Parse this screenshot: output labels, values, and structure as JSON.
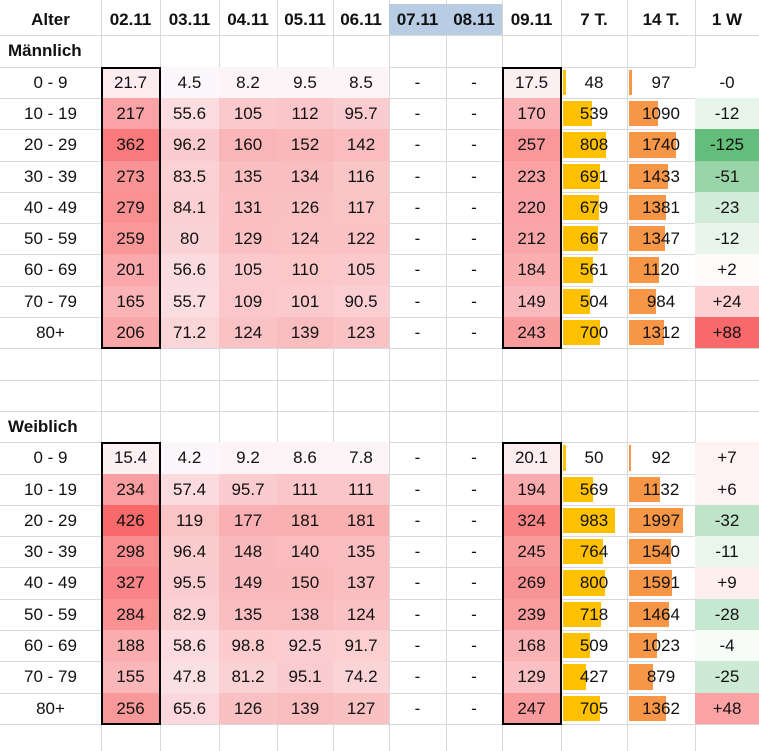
{
  "header": {
    "age_label": "Alter",
    "columns": [
      "02.11",
      "03.11",
      "04.11",
      "05.11",
      "06.11",
      "07.11",
      "08.11",
      "09.11",
      "7 T.",
      "14 T.",
      "1 W"
    ],
    "weekend_columns": [
      "07.11",
      "08.11"
    ],
    "weekend_header_color": "#b8cce4"
  },
  "groups": [
    {
      "title": "Männlich",
      "rows": [
        {
          "age": "0 - 9",
          "days": [
            "21.7",
            "4.5",
            "8.2",
            "9.5",
            "8.5",
            "-",
            "-",
            "17.5"
          ],
          "t7": "48",
          "t14": "97",
          "w1": "-0"
        },
        {
          "age": "10 - 19",
          "days": [
            "217",
            "55.6",
            "105",
            "112",
            "95.7",
            "-",
            "-",
            "170"
          ],
          "t7": "539",
          "t14": "1090",
          "w1": "-12"
        },
        {
          "age": "20 - 29",
          "days": [
            "362",
            "96.2",
            "160",
            "152",
            "142",
            "-",
            "-",
            "257"
          ],
          "t7": "808",
          "t14": "1740",
          "w1": "-125"
        },
        {
          "age": "30 - 39",
          "days": [
            "273",
            "83.5",
            "135",
            "134",
            "116",
            "-",
            "-",
            "223"
          ],
          "t7": "691",
          "t14": "1433",
          "w1": "-51"
        },
        {
          "age": "40 - 49",
          "days": [
            "279",
            "84.1",
            "131",
            "126",
            "117",
            "-",
            "-",
            "220"
          ],
          "t7": "679",
          "t14": "1381",
          "w1": "-23"
        },
        {
          "age": "50 - 59",
          "days": [
            "259",
            "80",
            "129",
            "124",
            "122",
            "-",
            "-",
            "212"
          ],
          "t7": "667",
          "t14": "1347",
          "w1": "-12"
        },
        {
          "age": "60 - 69",
          "days": [
            "201",
            "56.6",
            "105",
            "110",
            "105",
            "-",
            "-",
            "184"
          ],
          "t7": "561",
          "t14": "1120",
          "w1": "+2"
        },
        {
          "age": "70 - 79",
          "days": [
            "165",
            "55.7",
            "109",
            "101",
            "90.5",
            "-",
            "-",
            "149"
          ],
          "t7": "504",
          "t14": "984",
          "w1": "+24"
        },
        {
          "age": "80+",
          "days": [
            "206",
            "71.2",
            "124",
            "139",
            "123",
            "-",
            "-",
            "243"
          ],
          "t7": "700",
          "t14": "1312",
          "w1": "+88"
        }
      ]
    },
    {
      "title": "Weiblich",
      "rows": [
        {
          "age": "0 - 9",
          "days": [
            "15.4",
            "4.2",
            "9.2",
            "8.6",
            "7.8",
            "-",
            "-",
            "20.1"
          ],
          "t7": "50",
          "t14": "92",
          "w1": "+7"
        },
        {
          "age": "10 - 19",
          "days": [
            "234",
            "57.4",
            "95.7",
            "111",
            "111",
            "-",
            "-",
            "194"
          ],
          "t7": "569",
          "t14": "1132",
          "w1": "+6"
        },
        {
          "age": "20 - 29",
          "days": [
            "426",
            "119",
            "177",
            "181",
            "181",
            "-",
            "-",
            "324"
          ],
          "t7": "983",
          "t14": "1997",
          "w1": "-32"
        },
        {
          "age": "30 - 39",
          "days": [
            "298",
            "96.4",
            "148",
            "140",
            "135",
            "-",
            "-",
            "245"
          ],
          "t7": "764",
          "t14": "1540",
          "w1": "-11"
        },
        {
          "age": "40 - 49",
          "days": [
            "327",
            "95.5",
            "149",
            "150",
            "137",
            "-",
            "-",
            "269"
          ],
          "t7": "800",
          "t14": "1591",
          "w1": "+9"
        },
        {
          "age": "50 - 59",
          "days": [
            "284",
            "82.9",
            "135",
            "138",
            "124",
            "-",
            "-",
            "239"
          ],
          "t7": "718",
          "t14": "1464",
          "w1": "-28"
        },
        {
          "age": "60 - 69",
          "days": [
            "188",
            "58.6",
            "98.8",
            "92.5",
            "91.7",
            "-",
            "-",
            "168"
          ],
          "t7": "509",
          "t14": "1023",
          "w1": "-4"
        },
        {
          "age": "70 - 79",
          "days": [
            "155",
            "47.8",
            "81.2",
            "95.1",
            "74.2",
            "-",
            "-",
            "129"
          ],
          "t7": "427",
          "t14": "879",
          "w1": "-25"
        },
        {
          "age": "80+",
          "days": [
            "256",
            "65.6",
            "126",
            "139",
            "127",
            "-",
            "-",
            "247"
          ],
          "t7": "705",
          "t14": "1362",
          "w1": "+48"
        }
      ]
    }
  ],
  "colors": {
    "heat_low": "#fcfcff",
    "heat_high": "#f8696b",
    "bar_7t": "#ffc000",
    "bar_14t": "#f79646",
    "diff_negative": "#63be7b",
    "diff_positive": "#f8696b"
  }
}
